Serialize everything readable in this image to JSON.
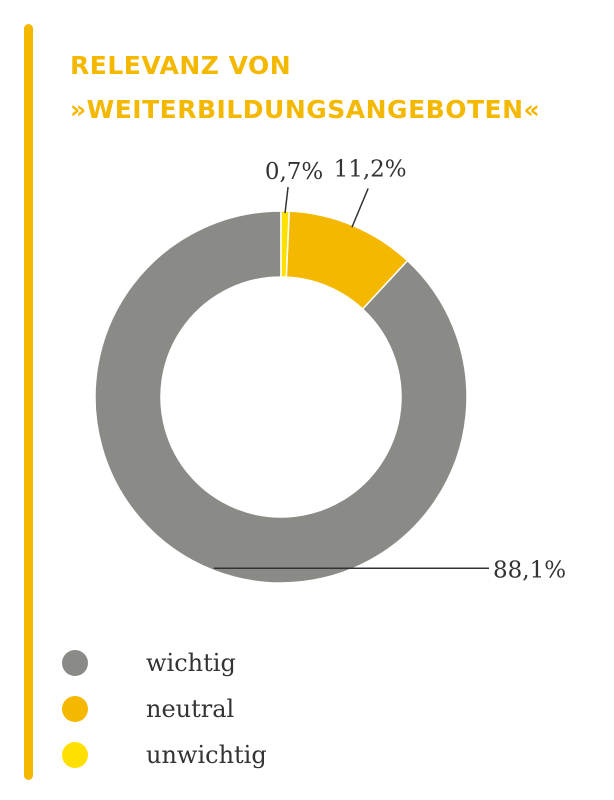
{
  "title": {
    "line1": "RELEVANZ VON",
    "line2": "»WEITERBILDUNGSANGEBOTEN«",
    "color": "#f5b800"
  },
  "chart_data": {
    "type": "pie",
    "title": "RELEVANZ VON »WEITERBILDUNGSANGEBOTEN«",
    "donut": true,
    "slices": [
      {
        "label": "wichtig",
        "value": 88.1,
        "value_label": "88,1%",
        "color": "#8a8a86"
      },
      {
        "label": "neutral",
        "value": 11.2,
        "value_label": "11,2%",
        "color": "#f5b800"
      },
      {
        "label": "unwichtig",
        "value": 0.7,
        "value_label": "0,7%",
        "color": "#ffe000"
      }
    ],
    "legend_position": "bottom-left"
  },
  "legend": {
    "items": [
      {
        "label": "wichtig",
        "color": "#8a8a86"
      },
      {
        "label": "neutral",
        "color": "#f5b800"
      },
      {
        "label": "unwichtig",
        "color": "#ffe000"
      }
    ]
  }
}
